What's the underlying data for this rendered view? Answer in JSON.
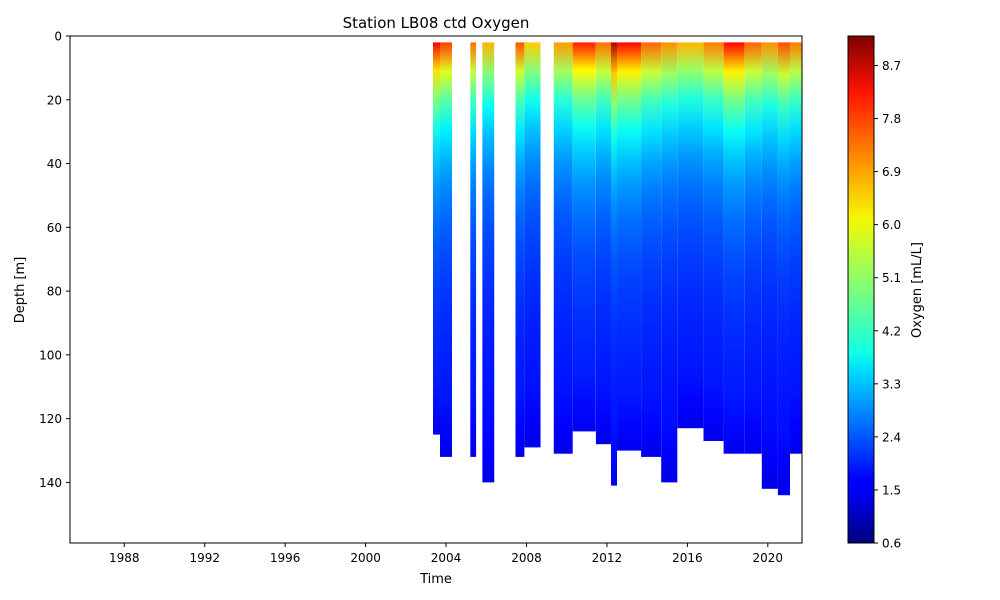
{
  "chart_data": {
    "type": "heatmap",
    "title": "Station LB08 ctd Oxygen",
    "xlabel": "Time",
    "ylabel": "Depth [m]",
    "xlim": [
      1985.3,
      2021.7
    ],
    "ylim": [
      159,
      0
    ],
    "x_ticks": [
      1988,
      1992,
      1996,
      2000,
      2004,
      2008,
      2012,
      2016,
      2020
    ],
    "y_ticks": [
      0,
      20,
      40,
      60,
      80,
      100,
      120,
      140
    ],
    "colorbar": {
      "label": "Oxygen [mL/L]",
      "range": [
        0.6,
        9.2
      ],
      "ticks": [
        "0.6",
        "1.5",
        "2.4",
        "3.3",
        "4.2",
        "5.1",
        "6.0",
        "6.9",
        "7.8",
        "8.7"
      ],
      "colormap": "jet"
    },
    "profiles": [
      {
        "start": 2003.35,
        "end": 2003.7,
        "max_depth": 125,
        "surface_oxygen": 8.2
      },
      {
        "start": 2003.7,
        "end": 2004.3,
        "max_depth": 132,
        "surface_oxygen": 7.6
      },
      {
        "start": 2005.2,
        "end": 2005.5,
        "max_depth": 132,
        "surface_oxygen": 7.2
      },
      {
        "start": 2005.8,
        "end": 2006.4,
        "max_depth": 140,
        "surface_oxygen": 6.6
      },
      {
        "start": 2007.45,
        "end": 2007.9,
        "max_depth": 132,
        "surface_oxygen": 7.4
      },
      {
        "start": 2007.9,
        "end": 2008.7,
        "max_depth": 129,
        "surface_oxygen": 6.4
      },
      {
        "start": 2009.35,
        "end": 2010.3,
        "max_depth": 131,
        "surface_oxygen": 6.8
      },
      {
        "start": 2010.3,
        "end": 2011.45,
        "max_depth": 124,
        "surface_oxygen": 7.9
      },
      {
        "start": 2011.45,
        "end": 2012.2,
        "max_depth": 128,
        "surface_oxygen": 7.2
      },
      {
        "start": 2012.2,
        "end": 2012.5,
        "max_depth": 141,
        "surface_oxygen": 8.8
      },
      {
        "start": 2012.5,
        "end": 2013.7,
        "max_depth": 130,
        "surface_oxygen": 8.1
      },
      {
        "start": 2013.7,
        "end": 2014.7,
        "max_depth": 132,
        "surface_oxygen": 7.3
      },
      {
        "start": 2014.7,
        "end": 2015.5,
        "max_depth": 140,
        "surface_oxygen": 6.9
      },
      {
        "start": 2015.5,
        "end": 2016.8,
        "max_depth": 123,
        "surface_oxygen": 6.6
      },
      {
        "start": 2016.8,
        "end": 2017.8,
        "max_depth": 127,
        "surface_oxygen": 7.1
      },
      {
        "start": 2017.8,
        "end": 2018.85,
        "max_depth": 131,
        "surface_oxygen": 8.1
      },
      {
        "start": 2018.85,
        "end": 2019.7,
        "max_depth": 131,
        "surface_oxygen": 7.3
      },
      {
        "start": 2019.7,
        "end": 2020.5,
        "max_depth": 142,
        "surface_oxygen": 6.9
      },
      {
        "start": 2020.5,
        "end": 2021.1,
        "max_depth": 144,
        "surface_oxygen": 7.5
      },
      {
        "start": 2021.1,
        "end": 2021.7,
        "max_depth": 131,
        "surface_oxygen": 7.1
      }
    ]
  }
}
